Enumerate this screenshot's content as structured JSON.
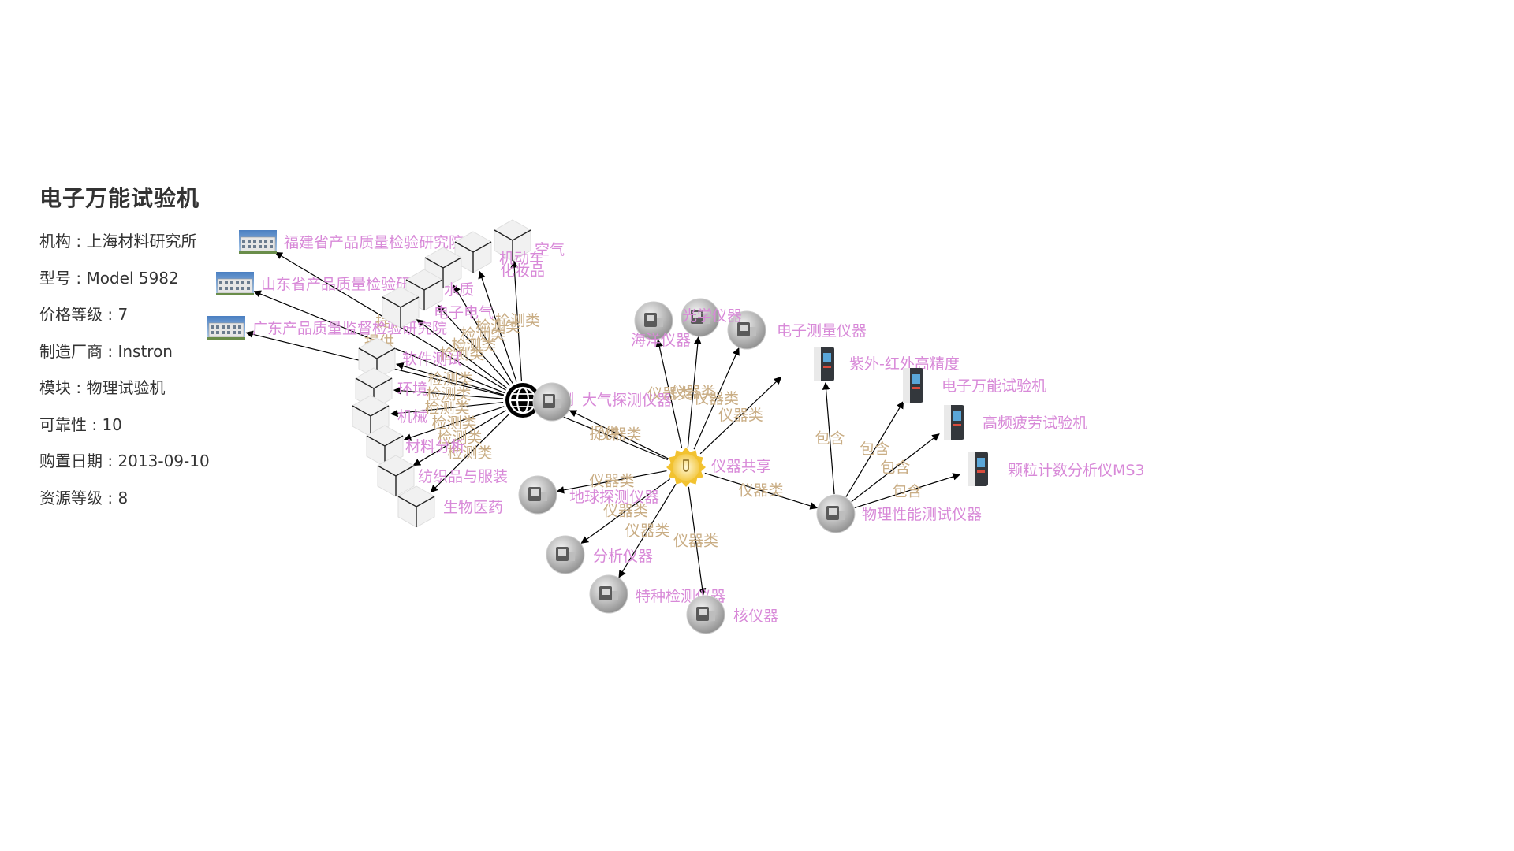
{
  "title": "电子万能试验机",
  "info": [
    {
      "key": "机构",
      "value": "上海材料研究所"
    },
    {
      "key": "型号",
      "value": "Model 5982"
    },
    {
      "key": "价格等级",
      "value": "7"
    },
    {
      "key": "制造厂商",
      "value": "Instron"
    },
    {
      "key": "模块",
      "value": "物理试验机"
    },
    {
      "key": "可靠性",
      "value": "10"
    },
    {
      "key": "购置日期",
      "value": "2013-09-10"
    },
    {
      "key": "资源等级",
      "value": "8"
    }
  ],
  "colors": {
    "node_label": "#d889d8",
    "edge_label": "#c9ad84",
    "edge": "#000000",
    "hub_gear": "#f2c230"
  },
  "graph": {
    "nodes": [
      {
        "id": "share",
        "label": "仪器共享",
        "kind": "gear"
      },
      {
        "id": "detect",
        "label": "检测",
        "kind": "globe"
      },
      {
        "id": "fj",
        "label": "福建省产品质量检验研究院",
        "kind": "building"
      },
      {
        "id": "sd",
        "label": "山东省产品质量检验研究院",
        "kind": "building"
      },
      {
        "id": "gd",
        "label": "广东产品质量监督检验研究院",
        "kind": "building"
      },
      {
        "id": "air",
        "label": "空气",
        "kind": "cube"
      },
      {
        "id": "vehicle",
        "label": "机动车",
        "kind": "cube"
      },
      {
        "id": "cosmetic",
        "label": "化妆品",
        "kind": "cube"
      },
      {
        "id": "water",
        "label": "水质",
        "kind": "cube"
      },
      {
        "id": "electro",
        "label": "电子电气",
        "kind": "cube"
      },
      {
        "id": "software",
        "label": "软件测试",
        "kind": "cube"
      },
      {
        "id": "env",
        "label": "环境",
        "kind": "cube"
      },
      {
        "id": "mech",
        "label": "机械",
        "kind": "cube"
      },
      {
        "id": "material",
        "label": "材料分析",
        "kind": "cube"
      },
      {
        "id": "textile",
        "label": "纺织品与服装",
        "kind": "cube"
      },
      {
        "id": "bio",
        "label": "生物医药",
        "kind": "cube"
      },
      {
        "id": "atmo",
        "label": "大气探测仪器",
        "kind": "device"
      },
      {
        "id": "ocean",
        "label": "海洋仪器",
        "kind": "device"
      },
      {
        "id": "elecmeas",
        "label": "电子测量仪器",
        "kind": "device"
      },
      {
        "id": "optical",
        "label": "光学仪器",
        "kind": "device"
      },
      {
        "id": "geo",
        "label": "地球探测仪器",
        "kind": "device"
      },
      {
        "id": "analysis",
        "label": "分析仪器",
        "kind": "device"
      },
      {
        "id": "special",
        "label": "特种检测仪器",
        "kind": "device"
      },
      {
        "id": "nuclear",
        "label": "核仪器",
        "kind": "device"
      },
      {
        "id": "physics",
        "label": "物理性能测试仪器",
        "kind": "device"
      },
      {
        "id": "ir",
        "label": "紫外-红外高精度",
        "kind": "machine"
      },
      {
        "id": "utm",
        "label": "电子万能试验机",
        "kind": "machine"
      },
      {
        "id": "fatigue",
        "label": "高频疲劳试验机",
        "kind": "machine"
      },
      {
        "id": "particle",
        "label": "颗粒计数分析仪MS3",
        "kind": "machine"
      }
    ],
    "edge_labels": {
      "provide": "提供",
      "detect_cat": "检测类",
      "instr_cat": "仪器类",
      "include": "包含"
    },
    "edges": [
      {
        "from": "detect",
        "to": "fj",
        "label": "提供"
      },
      {
        "from": "detect",
        "to": "sd",
        "label": "提供"
      },
      {
        "from": "detect",
        "to": "gd",
        "label": "提供"
      },
      {
        "from": "detect",
        "to": "air",
        "label": "检测类"
      },
      {
        "from": "detect",
        "to": "vehicle",
        "label": "检测类"
      },
      {
        "from": "detect",
        "to": "cosmetic",
        "label": "检测类"
      },
      {
        "from": "detect",
        "to": "water",
        "label": "检测类"
      },
      {
        "from": "detect",
        "to": "electro",
        "label": "检测类"
      },
      {
        "from": "detect",
        "to": "software",
        "label": "检测类"
      },
      {
        "from": "detect",
        "to": "env",
        "label": "检测类"
      },
      {
        "from": "detect",
        "to": "mech",
        "label": "检测类"
      },
      {
        "from": "detect",
        "to": "material",
        "label": "检测类"
      },
      {
        "from": "detect",
        "to": "textile",
        "label": "检测类"
      },
      {
        "from": "detect",
        "to": "bio",
        "label": "检测类"
      },
      {
        "from": "share",
        "to": "detect",
        "label": "提供"
      },
      {
        "from": "share",
        "to": "atmo",
        "label": "仪器类"
      },
      {
        "from": "share",
        "to": "ocean",
        "label": "仪器类"
      },
      {
        "from": "share",
        "to": "optical",
        "label": "仪器类"
      },
      {
        "from": "share",
        "to": "elecmeas",
        "label": "仪器类"
      },
      {
        "from": "share",
        "to": "physics",
        "label": "仪器类"
      },
      {
        "from": "share",
        "to": "geo",
        "label": "仪器类"
      },
      {
        "from": "share",
        "to": "analysis",
        "label": "仪器类"
      },
      {
        "from": "share",
        "to": "special",
        "label": "仪器类"
      },
      {
        "from": "share",
        "to": "nuclear",
        "label": "仪器类"
      },
      {
        "from": "share",
        "to": "extra",
        "label": "仪器类"
      },
      {
        "from": "physics",
        "to": "ir",
        "label": "包含"
      },
      {
        "from": "physics",
        "to": "utm",
        "label": "包含"
      },
      {
        "from": "physics",
        "to": "fatigue",
        "label": "包含"
      },
      {
        "from": "physics",
        "to": "particle",
        "label": "包含"
      }
    ]
  }
}
